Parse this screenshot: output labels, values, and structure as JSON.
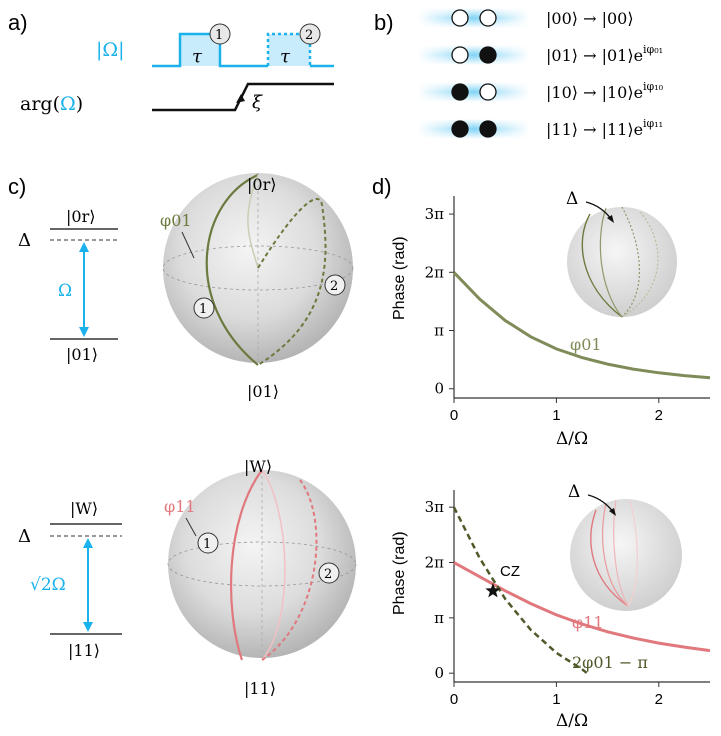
{
  "panels": {
    "a": {
      "label": "a)",
      "abs_omega": "|Ω|",
      "arg_omega": "arg(Ω)",
      "tau": "τ",
      "pulse1": "1",
      "pulse2": "2",
      "xi": "ξ"
    },
    "b": {
      "label": "b)",
      "states": [
        {
          "lhs": "|00⟩ → |00⟩",
          "phase": ""
        },
        {
          "lhs": "|01⟩ → |01⟩e",
          "phase": "iφ₀₁"
        },
        {
          "lhs": "|10⟩ → |10⟩e",
          "phase": "iφ₁₀"
        },
        {
          "lhs": "|11⟩ → |11⟩e",
          "phase": "iφ₁₁"
        }
      ]
    },
    "c": {
      "label": "c)",
      "top": {
        "upper_level": "|0r⟩",
        "lower_level": "|01⟩",
        "detuning": "Δ",
        "coupling": "Ω",
        "sphere_top": "|0r⟩",
        "sphere_bottom": "|01⟩",
        "phase": "φ01",
        "mark1": "1",
        "mark2": "2"
      },
      "bottom": {
        "upper_level": "|W⟩",
        "lower_level": "|11⟩",
        "detuning": "Δ",
        "coupling": "√2Ω",
        "sphere_top": "|W⟩",
        "sphere_bottom": "|11⟩",
        "phase": "φ11",
        "mark1": "1",
        "mark2": "2"
      }
    },
    "d": {
      "label": "d)",
      "top_plot": {
        "ylabel": "Phase (rad)",
        "xlabel": "Δ/Ω",
        "yticks": [
          "0",
          "π",
          "2π",
          "3π"
        ],
        "xticks": [
          "0",
          "1",
          "2"
        ],
        "curve_label": "φ01",
        "inset_label": "Δ"
      },
      "bottom_plot": {
        "ylabel": "Phase (rad)",
        "xlabel": "Δ/Ω",
        "yticks": [
          "0",
          "π",
          "2π",
          "3π"
        ],
        "xticks": [
          "0",
          "1",
          "2"
        ],
        "curve_label": "φ11",
        "dashed_label": "2φ01 − π",
        "star_label": "CZ",
        "inset_label": "Δ"
      }
    }
  },
  "chart_data": [
    {
      "type": "line",
      "xlabel": "Δ/Ω",
      "ylabel": "Phase (rad)",
      "xlim": [
        0,
        2.5
      ],
      "ylim": [
        -0.5,
        10.4
      ],
      "series": [
        {
          "name": "φ01",
          "x": [
            0,
            0.25,
            0.5,
            0.75,
            1.0,
            1.25,
            1.5,
            1.75,
            2.0,
            2.25,
            2.5
          ],
          "y": [
            6.28,
            4.84,
            3.68,
            2.8,
            2.15,
            1.68,
            1.33,
            1.06,
            0.86,
            0.71,
            0.59
          ]
        }
      ],
      "color": "#6b7a3e"
    },
    {
      "type": "line",
      "xlabel": "Δ/Ω",
      "ylabel": "Phase (rad)",
      "xlim": [
        0,
        2.5
      ],
      "ylim": [
        -0.5,
        10.4
      ],
      "series": [
        {
          "name": "φ11",
          "x": [
            0,
            0.25,
            0.5,
            0.75,
            1.0,
            1.25,
            1.5,
            1.75,
            2.0,
            2.25,
            2.5
          ],
          "y": [
            6.28,
            5.48,
            4.68,
            3.95,
            3.31,
            2.79,
            2.35,
            2.0,
            1.71,
            1.48,
            1.28
          ]
        },
        {
          "name": "2φ01 − π",
          "x": [
            0,
            0.25,
            0.5,
            0.75,
            1.0,
            1.25,
            1.3
          ],
          "y": [
            9.42,
            6.54,
            4.22,
            2.46,
            1.16,
            0.22,
            0.0
          ]
        }
      ],
      "annotations": [
        {
          "label": "CZ",
          "x": 0.38,
          "y": 4.67
        }
      ],
      "colors": {
        "φ11": "#e0787d",
        "2φ01 − π": "#4f5a2a"
      }
    }
  ]
}
